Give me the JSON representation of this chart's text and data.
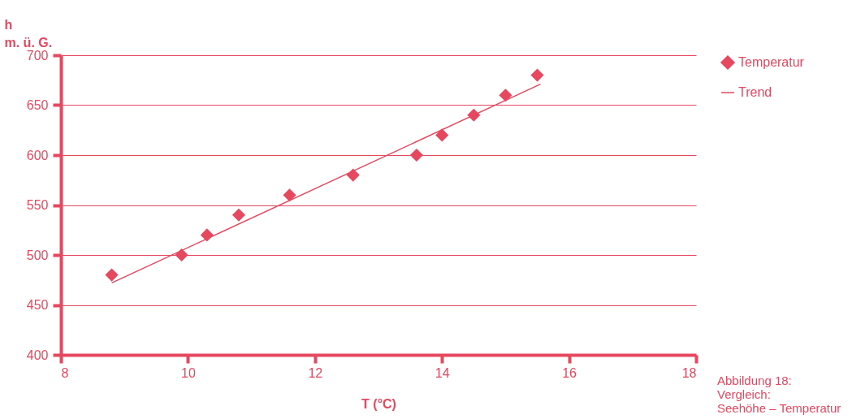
{
  "chart_data": {
    "type": "scatter",
    "xlabel": "T (°C)",
    "ylabel": "h\nm. ü. G.",
    "xlim": [
      8,
      18
    ],
    "xticks": [
      8,
      10,
      12,
      14,
      16,
      18
    ],
    "ylim": [
      400,
      700
    ],
    "yticks": [
      400,
      450,
      500,
      550,
      600,
      650,
      700
    ],
    "grid": "y",
    "legend": "top right",
    "series": [
      {
        "name": "Temperatur",
        "color": "#e5485f",
        "marker": "diamond",
        "x": [
          8.8,
          9.9,
          10.3,
          10.8,
          11.6,
          12.6,
          13.6,
          14.0,
          14.5,
          15.0,
          15.5
        ],
        "values": [
          480,
          500,
          520,
          540,
          560,
          580,
          600,
          620,
          640,
          660,
          680
        ]
      },
      {
        "name": "Trend",
        "type": "line",
        "marker": "none",
        "color": "#e5485f",
        "x": [
          8.8,
          15.55
        ],
        "values": [
          472,
          671
        ]
      }
    ],
    "annotations": [
      "Abbildung 18:\nVergleich:\nSeehöhe – Temperatur"
    ]
  }
}
